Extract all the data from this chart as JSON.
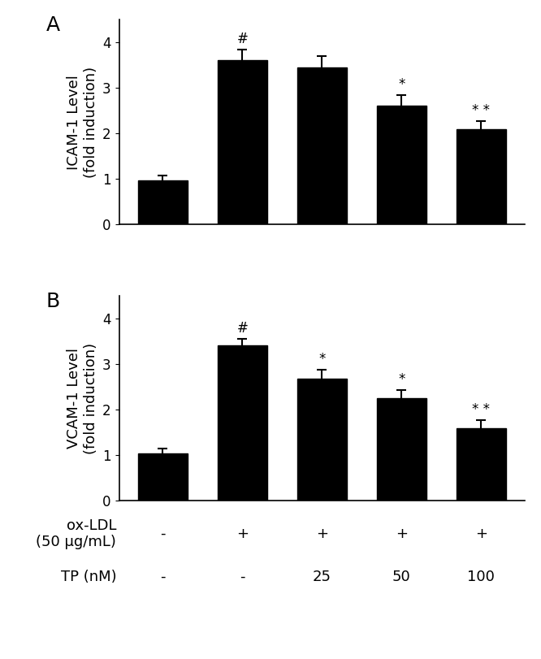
{
  "panel_A": {
    "values": [
      0.97,
      3.62,
      3.45,
      2.62,
      2.1
    ],
    "errors": [
      0.1,
      0.22,
      0.25,
      0.22,
      0.18
    ],
    "ylabel": "ICAM-1 Level\n(fold induction)",
    "ylim": [
      0,
      4.5
    ],
    "yticks": [
      0,
      1,
      2,
      3,
      4
    ],
    "label": "A",
    "annotations": [
      "",
      "#",
      "",
      "*",
      "* *"
    ]
  },
  "panel_B": {
    "values": [
      1.05,
      3.42,
      2.68,
      2.25,
      1.6
    ],
    "errors": [
      0.1,
      0.14,
      0.2,
      0.18,
      0.18
    ],
    "ylabel": "VCAM-1 Level\n(fold induction)",
    "ylim": [
      0,
      4.5
    ],
    "yticks": [
      0,
      1,
      2,
      3,
      4
    ],
    "label": "B",
    "annotations": [
      "",
      "#",
      "*",
      "*",
      "* *"
    ]
  },
  "bar_color": "#000000",
  "bar_width": 0.62,
  "x_positions": [
    0,
    1,
    2,
    3,
    4
  ],
  "oxldl_row": [
    "-",
    "+",
    "+",
    "+",
    "+"
  ],
  "tp_row": [
    "-",
    "-",
    "25",
    "50",
    "100"
  ],
  "oxldl_label": "ox-LDL\n(50 μg/mL)",
  "tp_label": "TP (nM)",
  "capsize": 4,
  "elinewidth": 1.5,
  "ecapthick": 1.5,
  "annotation_fontsize": 12,
  "label_fontsize": 18,
  "tick_fontsize": 12,
  "ylabel_fontsize": 13,
  "row_label_fontsize": 13,
  "row_value_fontsize": 13
}
